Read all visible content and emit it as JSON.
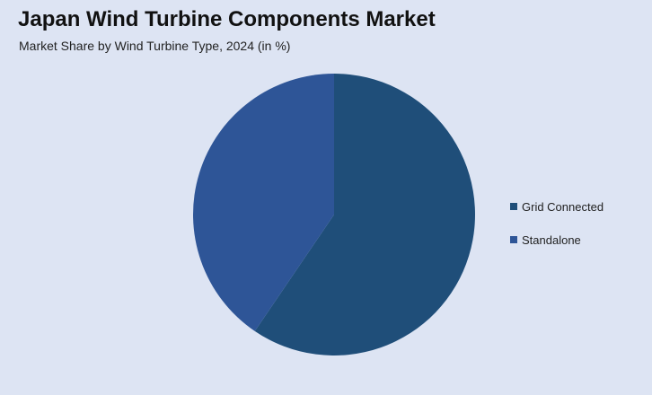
{
  "header": {
    "title": "Japan Wind Turbine Components Market",
    "subtitle": "Market Share by Wind Turbine Type, 2024 (in %)"
  },
  "chart_data": {
    "type": "pie",
    "title": "Japan Wind Turbine Components Market",
    "subtitle": "Market Share by Wind Turbine Type, 2024 (in %)",
    "legend_position": "right",
    "categories": [
      "Grid Connected",
      "Standalone"
    ],
    "values": [
      59.5,
      40.5
    ],
    "colors": [
      "#1f4e79",
      "#2e5597"
    ]
  }
}
